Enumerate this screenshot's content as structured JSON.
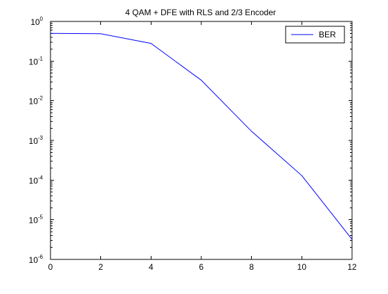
{
  "chart_data": {
    "type": "line",
    "title": "4 QAM + DFE with RLS and 2/3 Encoder",
    "xlabel": "",
    "ylabel": "",
    "xlim": [
      0,
      12
    ],
    "ylim": [
      1e-06,
      1
    ],
    "yscale": "log",
    "grid": false,
    "legend_position": "top-right",
    "x_ticks": [
      {
        "value": 0,
        "label": "0"
      },
      {
        "value": 2,
        "label": "2"
      },
      {
        "value": 4,
        "label": "4"
      },
      {
        "value": 6,
        "label": "6"
      },
      {
        "value": 8,
        "label": "8"
      },
      {
        "value": 10,
        "label": "10"
      },
      {
        "value": 12,
        "label": "12"
      }
    ],
    "y_ticks": [
      {
        "value": 1,
        "base": "10",
        "exp": "0"
      },
      {
        "value": 0.1,
        "base": "10",
        "exp": "-1"
      },
      {
        "value": 0.01,
        "base": "10",
        "exp": "-2"
      },
      {
        "value": 0.001,
        "base": "10",
        "exp": "-3"
      },
      {
        "value": 0.0001,
        "base": "10",
        "exp": "-4"
      },
      {
        "value": 1e-05,
        "base": "10",
        "exp": "-5"
      },
      {
        "value": 1e-06,
        "base": "10",
        "exp": "-6"
      }
    ],
    "series": [
      {
        "name": "BER",
        "color": "#0000ff",
        "x": [
          0,
          2,
          4,
          6,
          8,
          10,
          12
        ],
        "y": [
          0.5,
          0.49,
          0.28,
          0.033,
          0.0017,
          0.00013,
          3.2e-06
        ]
      }
    ]
  }
}
